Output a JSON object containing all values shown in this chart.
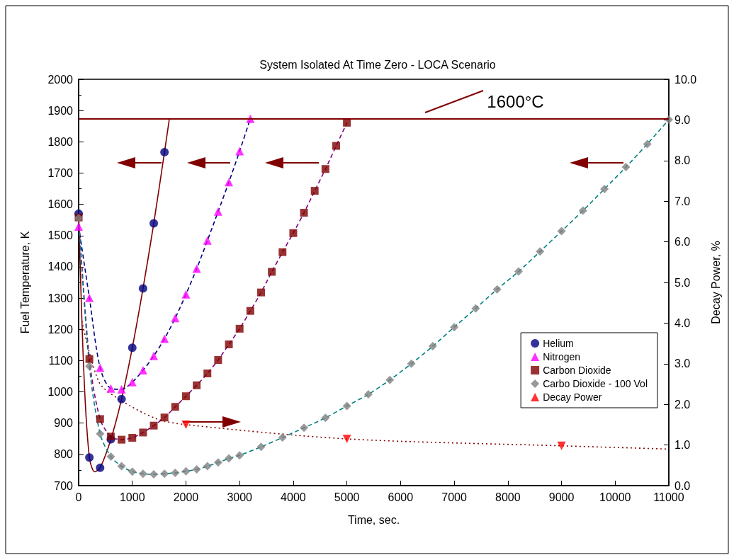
{
  "chart_data": {
    "type": "line",
    "title": "System Isolated At Time Zero - LOCA Scenario",
    "xlabel": "Time, sec.",
    "ylabel": "Fuel Temperature, K",
    "y2label": "Decay Power, %",
    "xlim": [
      0,
      11000
    ],
    "xticks": [
      0,
      1000,
      2000,
      3000,
      4000,
      5000,
      6000,
      7000,
      8000,
      9000,
      10000,
      11000
    ],
    "ylim": [
      700,
      2000
    ],
    "yticks": [
      700,
      800,
      900,
      1000,
      1100,
      1200,
      1300,
      1400,
      1500,
      1600,
      1700,
      1800,
      1900,
      2000
    ],
    "y2lim": [
      0,
      10
    ],
    "y2ticks": [
      {
        "value": 0,
        "label": "0.0"
      },
      {
        "value": 1,
        "label": "1.0"
      },
      {
        "value": 2,
        "label": "2.0"
      },
      {
        "value": 3,
        "label": "3.0"
      },
      {
        "value": 4,
        "label": "4.0"
      },
      {
        "value": 5,
        "label": "5.0"
      },
      {
        "value": 6,
        "label": "6.0"
      },
      {
        "value": 7,
        "label": "7.0"
      },
      {
        "value": 8,
        "label": "8.0"
      },
      {
        "value": 9,
        "label": "9.0"
      },
      {
        "value": 10,
        "label": "10.0"
      }
    ],
    "grid": false,
    "legend": "right",
    "ref_lines": [
      {
        "axis": "y",
        "value": 1873,
        "label": "1600°C",
        "color": "#800000"
      }
    ],
    "series": [
      {
        "type": "line",
        "color": "#800000",
        "line_style": "solid",
        "marker": "none",
        "x": [
          0,
          100,
          200,
          300,
          400,
          600,
          800,
          1000,
          1200,
          1400,
          1600,
          1690
        ],
        "values": [
          1575,
          1050,
          790,
          744,
          757,
          848,
          977,
          1141,
          1331,
          1539,
          1767,
          1873
        ]
      },
      {
        "type": "scatter",
        "name": "Helium",
        "color": "#000080",
        "marker": "circle",
        "x": [
          0,
          200,
          400,
          600,
          800,
          1000,
          1200,
          1400,
          1600
        ],
        "values": [
          1570,
          790,
          757,
          848,
          977,
          1141,
          1331,
          1539,
          1767
        ]
      },
      {
        "type": "line",
        "color": "#000080",
        "line_style": "dashed",
        "marker": "none",
        "x": [
          0,
          200,
          400,
          600,
          800,
          1000,
          1200,
          1400,
          1600,
          1800,
          2000,
          2200,
          2400,
          2600,
          2800,
          3000,
          3200
        ],
        "values": [
          1529,
          1301,
          1077,
          1011,
          1008,
          1031,
          1069,
          1115,
          1170,
          1236,
          1312,
          1394,
          1484,
          1577,
          1671,
          1770,
          1874
        ]
      },
      {
        "type": "scatter",
        "name": "Nitrogen",
        "color": "#ff00ff",
        "marker": "triangle",
        "x": [
          0,
          200,
          400,
          600,
          800,
          1000,
          1200,
          1400,
          1600,
          1800,
          2000,
          2200,
          2400,
          2600,
          2800,
          3000,
          3200
        ],
        "values": [
          1529,
          1301,
          1077,
          1011,
          1008,
          1031,
          1069,
          1115,
          1170,
          1236,
          1312,
          1394,
          1484,
          1577,
          1671,
          1770,
          1874
        ]
      },
      {
        "type": "line",
        "color": "#800080",
        "line_style": "dashed",
        "marker": "none",
        "x": [
          0,
          200,
          400,
          600,
          800,
          1000,
          1200,
          1400,
          1600,
          1800,
          2000,
          2200,
          2400,
          2600,
          2800,
          3000,
          3200,
          3400,
          3600,
          3800,
          4000,
          4200,
          4400,
          4600,
          4800,
          5000
        ],
        "values": [
          1558,
          1105,
          913,
          857,
          847,
          853,
          870,
          892,
          918,
          952,
          986,
          1021,
          1059,
          1102,
          1152,
          1202,
          1259,
          1318,
          1384,
          1447,
          1508,
          1573,
          1643,
          1713,
          1787,
          1861
        ]
      },
      {
        "type": "scatter",
        "name": "Carbon Dioxide",
        "color": "#800000",
        "marker": "square",
        "x": [
          0,
          200,
          400,
          600,
          800,
          1000,
          1200,
          1400,
          1600,
          1800,
          2000,
          2200,
          2400,
          2600,
          2800,
          3000,
          3200,
          3400,
          3600,
          3800,
          4000,
          4200,
          4400,
          4600,
          4800,
          5000
        ],
        "values": [
          1558,
          1105,
          913,
          857,
          847,
          853,
          870,
          892,
          918,
          952,
          986,
          1021,
          1059,
          1102,
          1152,
          1202,
          1259,
          1318,
          1384,
          1447,
          1508,
          1573,
          1643,
          1713,
          1787,
          1861
        ]
      },
      {
        "type": "line",
        "color": "#008080",
        "line_style": "dashed",
        "marker": "none",
        "x": [
          0,
          200,
          400,
          600,
          800,
          1000,
          1200,
          1400,
          1600,
          1800,
          2000,
          2200,
          2400,
          2600,
          2800,
          3000,
          3400,
          3800,
          4200,
          4600,
          5000,
          5400,
          5800,
          6200,
          6600,
          7000,
          7400,
          7800,
          8200,
          8600,
          9000,
          9400,
          9800,
          10200,
          10600,
          11000
        ],
        "values": [
          1556,
          1082,
          866,
          793,
          762,
          745,
          738,
          736,
          738,
          741,
          746,
          752,
          762,
          774,
          787,
          797,
          824,
          854,
          885,
          917,
          955,
          992,
          1038,
          1090,
          1146,
          1207,
          1267,
          1328,
          1385,
          1449,
          1514,
          1580,
          1649,
          1719,
          1793,
          1871
        ]
      },
      {
        "type": "scatter",
        "name": "Carbo Dioxide - 100 Vol",
        "color": "#808080",
        "marker": "diamond",
        "x": [
          0,
          200,
          400,
          600,
          800,
          1000,
          1200,
          1400,
          1600,
          1800,
          2000,
          2200,
          2400,
          2600,
          2800,
          3000,
          3400,
          3800,
          4200,
          4600,
          5000,
          5400,
          5800,
          6200,
          6600,
          7000,
          7400,
          7800,
          8200,
          8600,
          9000,
          9400,
          9800,
          10200,
          10600,
          11000
        ],
        "values": [
          1556,
          1082,
          866,
          793,
          762,
          745,
          738,
          736,
          738,
          741,
          746,
          752,
          762,
          774,
          787,
          797,
          824,
          854,
          885,
          917,
          955,
          992,
          1038,
          1090,
          1146,
          1207,
          1267,
          1328,
          1385,
          1449,
          1514,
          1580,
          1649,
          1719,
          1793,
          1871
        ]
      },
      {
        "type": "line",
        "axis": "y2",
        "color": "#800000",
        "line_style": "dotted",
        "marker": "none",
        "x": [
          60,
          380,
          750,
          1440,
          2000,
          5000,
          9000,
          11000
        ],
        "values": [
          4.05,
          2.55,
          2.13,
          1.65,
          1.5,
          1.15,
          0.98,
          0.9
        ]
      },
      {
        "type": "scatter",
        "axis": "y2",
        "name": "Decay Power",
        "color": "#ff0000",
        "marker": "triangle-down",
        "x": [
          2000,
          5000,
          9000
        ],
        "values": [
          1.5,
          1.15,
          0.98
        ]
      }
    ]
  }
}
